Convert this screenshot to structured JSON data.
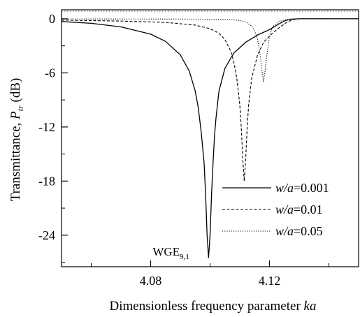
{
  "chart_data": {
    "type": "line",
    "xlabel": {
      "prefix": "Dimensionless frequency parameter ",
      "var": "ka"
    },
    "ylabel": {
      "prefix": "Transmittance, ",
      "var": "P",
      "sub": "tr",
      "suffix": " (dB)"
    },
    "xlim": [
      4.05,
      4.15
    ],
    "ylim": [
      -27.5,
      1.0
    ],
    "xticks": [
      4.08,
      4.12
    ],
    "xtick_labels": [
      "4.08",
      "4.12"
    ],
    "yticks": [
      0,
      -6,
      -12,
      -18,
      -24
    ],
    "ytick_labels": [
      "0",
      "-6",
      "-12",
      "-18",
      "-24"
    ],
    "annotation": {
      "text": "WGE",
      "sub": "9,1",
      "x": 4.0995,
      "y": -26.2
    },
    "legend_position": "lower-right",
    "series": [
      {
        "name_var": "w/a",
        "name_value": "=0.001",
        "style": "solid",
        "x": [
          4.05,
          4.06,
          4.07,
          4.08,
          4.085,
          4.09,
          4.093,
          4.095,
          4.096,
          4.097,
          4.098,
          4.0985,
          4.099,
          4.0995,
          4.1,
          4.1005,
          4.101,
          4.1015,
          4.102,
          4.103,
          4.105,
          4.108,
          4.112,
          4.116,
          4.12,
          4.123,
          4.125,
          4.127,
          4.13,
          4.15
        ],
        "y": [
          -0.3,
          -0.5,
          -0.9,
          -1.7,
          -2.5,
          -4.0,
          -5.8,
          -8.0,
          -9.8,
          -12.5,
          -16.0,
          -19.5,
          -24.0,
          -26.5,
          -24.0,
          -19.5,
          -16.0,
          -13.0,
          -11.0,
          -8.0,
          -5.5,
          -3.8,
          -2.6,
          -1.8,
          -1.2,
          -0.6,
          -0.25,
          -0.05,
          0.0,
          0.0
        ]
      },
      {
        "name_var": "w/a",
        "name_value": "=0.01",
        "style": "dashed",
        "x": [
          4.05,
          4.07,
          4.085,
          4.095,
          4.1,
          4.103,
          4.105,
          4.107,
          4.108,
          4.109,
          4.11,
          4.1105,
          4.111,
          4.1115,
          4.112,
          4.1125,
          4.113,
          4.114,
          4.116,
          4.118,
          4.121,
          4.124,
          4.126,
          4.128,
          4.13,
          4.15
        ],
        "y": [
          -0.15,
          -0.25,
          -0.4,
          -0.7,
          -1.1,
          -1.6,
          -2.3,
          -3.6,
          -4.8,
          -6.6,
          -9.5,
          -12.0,
          -15.5,
          -18.0,
          -15.5,
          -12.0,
          -9.5,
          -6.6,
          -4.0,
          -2.6,
          -1.6,
          -0.8,
          -0.35,
          -0.08,
          0.0,
          0.0
        ]
      },
      {
        "name_var": "w/a",
        "name_value": "=0.05",
        "style": "dotted",
        "x": [
          4.05,
          4.09,
          4.1,
          4.105,
          4.108,
          4.11,
          4.112,
          4.114,
          4.115,
          4.116,
          4.117,
          4.1175,
          4.118,
          4.1185,
          4.119,
          4.12,
          4.121,
          4.123,
          4.125,
          4.127,
          4.13,
          4.15
        ],
        "y": [
          -0.02,
          -0.03,
          -0.05,
          -0.08,
          -0.12,
          -0.2,
          -0.35,
          -0.8,
          -1.3,
          -2.3,
          -4.3,
          -5.8,
          -7.0,
          -5.8,
          -4.3,
          -2.0,
          -0.9,
          -0.35,
          -0.12,
          -0.03,
          0.0,
          0.0
        ]
      }
    ]
  }
}
